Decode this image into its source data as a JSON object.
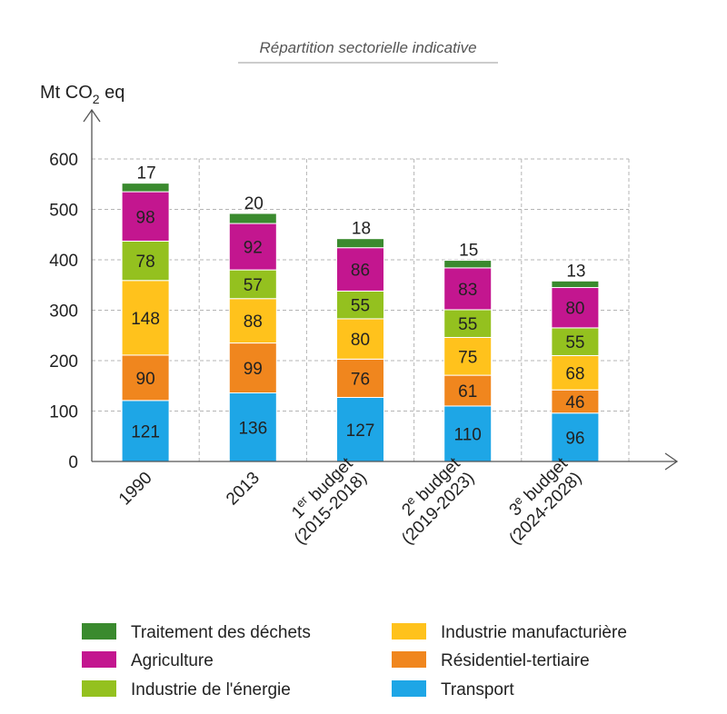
{
  "chart_data": {
    "type": "bar",
    "stacked": true,
    "subtitle": "Répartition sectorielle indicative",
    "ylabel": {
      "prefix": "Mt CO",
      "subscript": "2",
      "suffix": " eq"
    },
    "ylim": [
      0,
      600
    ],
    "yticks": [
      0,
      100,
      200,
      300,
      400,
      500,
      600
    ],
    "grid": true,
    "categories": [
      {
        "lines": [
          {
            "text": "1990"
          }
        ]
      },
      {
        "lines": [
          {
            "text": "2013"
          }
        ]
      },
      {
        "lines": [
          {
            "text": "1",
            "sup": "er",
            "rest": " budget"
          },
          {
            "text": "(2015-2018)"
          }
        ]
      },
      {
        "lines": [
          {
            "text": "2",
            "sup": "e",
            "rest": " budget"
          },
          {
            "text": "(2019-2023)"
          }
        ]
      },
      {
        "lines": [
          {
            "text": "3",
            "sup": "e",
            "rest": " budget"
          },
          {
            "text": "(2024-2028)"
          }
        ]
      }
    ],
    "series": [
      {
        "name": "Transport",
        "color": "#1ea6e6",
        "values": [
          121,
          136,
          127,
          110,
          96
        ]
      },
      {
        "name": "Résidentiel-tertiaire",
        "color": "#f0861e",
        "values": [
          90,
          99,
          76,
          61,
          46
        ]
      },
      {
        "name": "Industrie manufacturière",
        "color": "#ffc21c",
        "values": [
          148,
          88,
          80,
          75,
          68
        ]
      },
      {
        "name": "Industrie de l'énergie",
        "color": "#94c11f",
        "values": [
          78,
          57,
          55,
          55,
          55
        ]
      },
      {
        "name": "Agriculture",
        "color": "#c3168f",
        "values": [
          98,
          92,
          86,
          83,
          80
        ]
      },
      {
        "name": "Traitement des déchets",
        "color": "#3a8a2e",
        "values": [
          17,
          20,
          18,
          15,
          13
        ]
      }
    ],
    "legend_order": [
      "Traitement des déchets",
      "Industrie manufacturière",
      "Agriculture",
      "Résidentiel-tertiaire",
      "Industrie de l'énergie",
      "Transport"
    ],
    "legend_position": "bottom"
  }
}
